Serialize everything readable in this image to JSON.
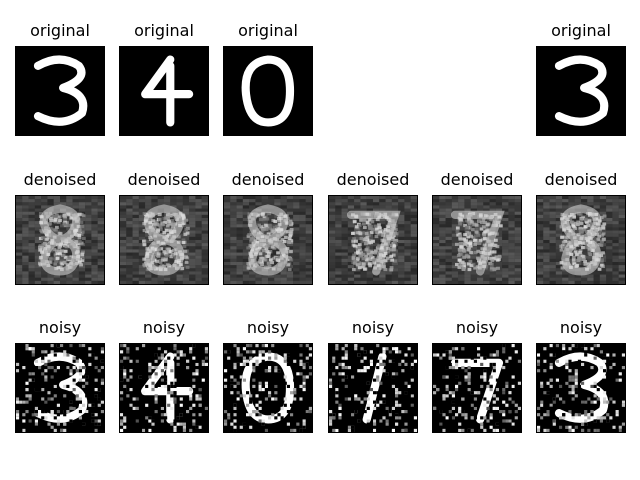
{
  "rows": [
    {
      "name": "original",
      "cells": [
        {
          "title": "original",
          "digit": "3"
        },
        {
          "title": "original",
          "digit": "4"
        },
        {
          "title": "original",
          "digit": "0"
        },
        null,
        null,
        {
          "title": "original",
          "digit": "3"
        }
      ]
    },
    {
      "name": "denoised",
      "cells": [
        {
          "title": "denoised",
          "digit": "8"
        },
        {
          "title": "denoised",
          "digit": "8"
        },
        {
          "title": "denoised",
          "digit": "8"
        },
        {
          "title": "denoised",
          "digit": "7"
        },
        {
          "title": "denoised",
          "digit": "7"
        },
        {
          "title": "denoised",
          "digit": "8"
        }
      ]
    },
    {
      "name": "noisy",
      "cells": [
        {
          "title": "noisy",
          "digit": "3"
        },
        {
          "title": "noisy",
          "digit": "4"
        },
        {
          "title": "noisy",
          "digit": "0"
        },
        {
          "title": "noisy",
          "digit": "1"
        },
        {
          "title": "noisy",
          "digit": "7"
        },
        {
          "title": "noisy",
          "digit": "3"
        }
      ]
    }
  ]
}
